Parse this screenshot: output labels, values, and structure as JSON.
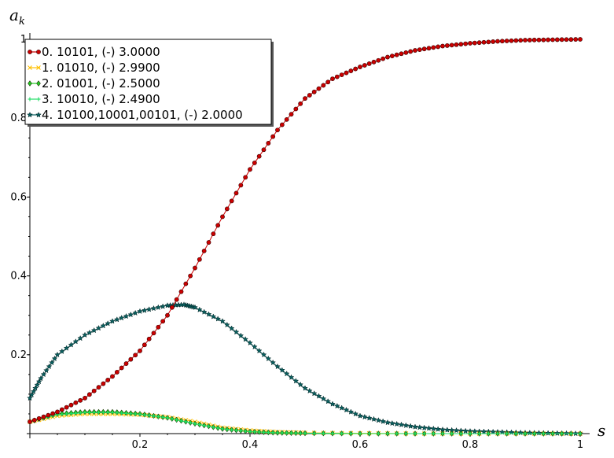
{
  "chart_data": {
    "type": "scatter",
    "xlabel": "s",
    "ylabel": "a",
    "ylabel_sub": "k",
    "xlim": [
      0,
      1
    ],
    "ylim": [
      0,
      1
    ],
    "x_ticks": [
      0.2,
      0.4,
      0.6,
      0.8,
      1.0
    ],
    "y_ticks": [
      0.2,
      0.4,
      0.6,
      0.8,
      1.0
    ],
    "x_tick_labels": [
      "0.2",
      "0.4",
      "0.6",
      "0.8",
      "1"
    ],
    "y_tick_labels": [
      "0.2",
      "0.4",
      "0.6",
      "0.8",
      "1"
    ],
    "grid": false,
    "legend_position": "top-left",
    "colors": {
      "series0": "#cc0000",
      "series1": "#ffc000",
      "series2": "#22cc22",
      "series3": "#22dd66",
      "series4": "#0a6060"
    },
    "series": [
      {
        "name": "0. 10101, (-) 3.0000",
        "marker": "circle",
        "color": "#cc0000",
        "x": [
          0,
          0.05,
          0.1,
          0.15,
          0.2,
          0.25,
          0.3,
          0.35,
          0.4,
          0.45,
          0.5,
          0.55,
          0.6,
          0.65,
          0.7,
          0.75,
          0.8,
          0.85,
          0.9,
          0.95,
          1.0
        ],
        "y": [
          0.03,
          0.055,
          0.09,
          0.145,
          0.21,
          0.3,
          0.42,
          0.55,
          0.67,
          0.77,
          0.85,
          0.9,
          0.93,
          0.955,
          0.972,
          0.983,
          0.99,
          0.995,
          0.998,
          0.999,
          1.0
        ]
      },
      {
        "name": "1. 01010, (-) 2.9900",
        "marker": "x",
        "color": "#ffc000",
        "x": [
          0,
          0.05,
          0.1,
          0.15,
          0.2,
          0.25,
          0.3,
          0.35,
          0.4,
          0.45,
          0.5,
          0.6,
          0.7,
          0.8,
          0.9,
          1.0
        ],
        "y": [
          0.03,
          0.045,
          0.05,
          0.05,
          0.048,
          0.042,
          0.03,
          0.015,
          0.008,
          0.004,
          0.002,
          0.001,
          0.0,
          0.0,
          0.0,
          0.0
        ]
      },
      {
        "name": "2. 01001, (-) 2.5000",
        "marker": "diamond",
        "color": "#22cc22",
        "x": [
          0,
          0.05,
          0.1,
          0.15,
          0.2,
          0.25,
          0.3,
          0.35,
          0.4,
          0.45,
          0.5,
          0.6,
          0.7,
          0.8,
          0.9,
          1.0
        ],
        "y": [
          0.03,
          0.05,
          0.055,
          0.055,
          0.05,
          0.04,
          0.025,
          0.012,
          0.005,
          0.002,
          0.001,
          0.0,
          0.0,
          0.0,
          0.0,
          0.0
        ]
      },
      {
        "name": "3. 10010, (-) 2.4900",
        "marker": "plus",
        "color": "#22dd66",
        "x": [
          0,
          0.05,
          0.1,
          0.15,
          0.2,
          0.25,
          0.3,
          0.35,
          0.4,
          0.45,
          0.5,
          0.6,
          0.7,
          0.8,
          0.9,
          1.0
        ],
        "y": [
          0.03,
          0.048,
          0.053,
          0.053,
          0.049,
          0.04,
          0.025,
          0.012,
          0.005,
          0.002,
          0.001,
          0.0,
          0.0,
          0.0,
          0.0,
          0.0
        ]
      },
      {
        "name": "4. 10100,10001,00101, (-) 2.0000",
        "marker": "star",
        "color": "#0a6060",
        "x": [
          0,
          0.02,
          0.05,
          0.1,
          0.15,
          0.2,
          0.25,
          0.28,
          0.3,
          0.35,
          0.4,
          0.45,
          0.5,
          0.55,
          0.6,
          0.65,
          0.7,
          0.75,
          0.8,
          0.85,
          0.9,
          0.95,
          1.0
        ],
        "y": [
          0.09,
          0.14,
          0.2,
          0.25,
          0.285,
          0.31,
          0.325,
          0.327,
          0.32,
          0.285,
          0.23,
          0.17,
          0.115,
          0.075,
          0.045,
          0.028,
          0.017,
          0.01,
          0.006,
          0.004,
          0.002,
          0.001,
          0.0
        ]
      }
    ]
  }
}
